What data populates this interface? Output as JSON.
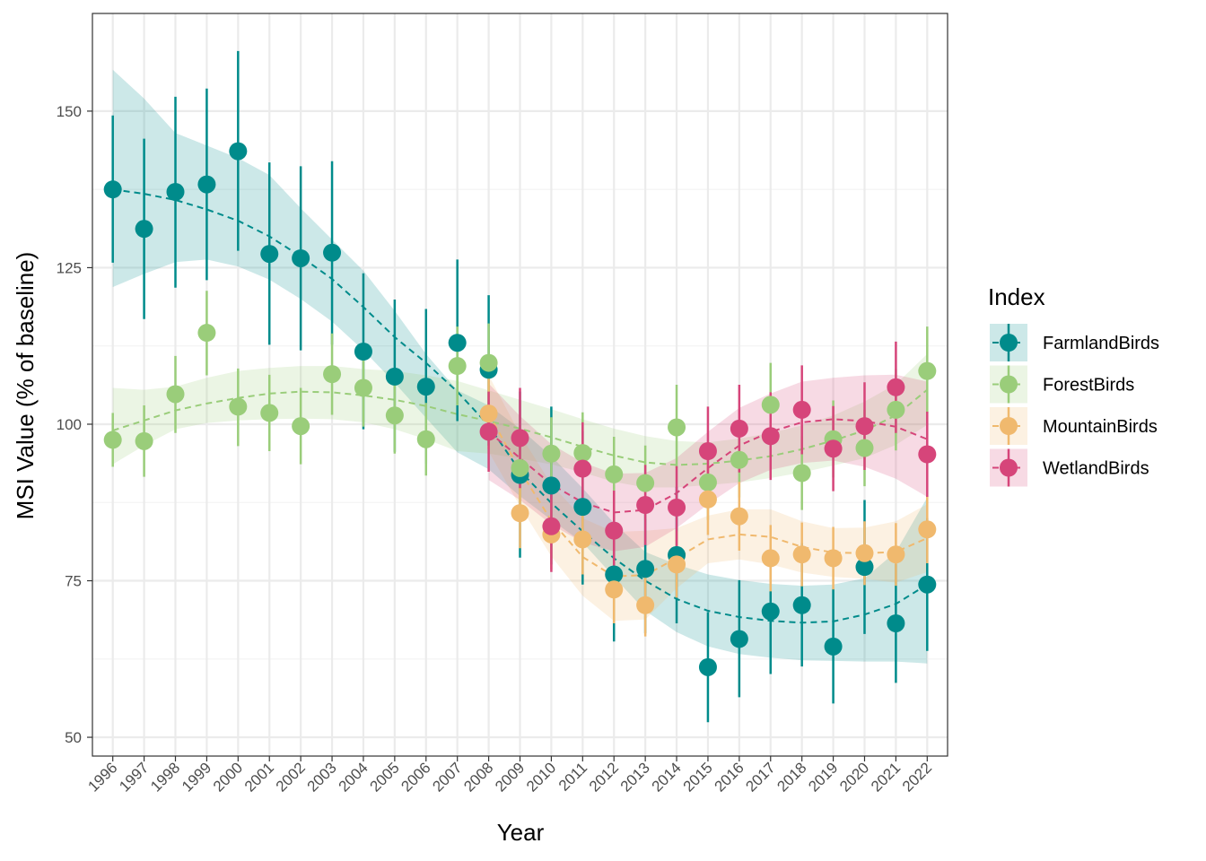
{
  "chart_data": {
    "type": "scatter",
    "xlabel": "Year",
    "ylabel": "MSI Value (% of baseline)",
    "xlim": [
      1995.35,
      2022.65
    ],
    "ylim": [
      47.0,
      165.6
    ],
    "yticks": [
      50,
      75,
      100,
      125,
      150
    ],
    "x": [
      1996,
      1997,
      1998,
      1999,
      2000,
      2001,
      2002,
      2003,
      2004,
      2005,
      2006,
      2007,
      2008,
      2009,
      2010,
      2011,
      2012,
      2013,
      2014,
      2015,
      2016,
      2017,
      2018,
      2019,
      2020,
      2021,
      2022
    ],
    "grid": true,
    "legend": {
      "title": "Index",
      "position": "right"
    },
    "series": [
      {
        "name": "FarmlandBirds",
        "color": "#008b8b",
        "x": [
          1996,
          1997,
          1998,
          1999,
          2000,
          2001,
          2002,
          2003,
          2004,
          2005,
          2006,
          2007,
          2008,
          2009,
          2010,
          2011,
          2012,
          2013,
          2014,
          2015,
          2016,
          2017,
          2018,
          2019,
          2020,
          2021,
          2022
        ],
        "y": [
          137.5,
          131.2,
          137.1,
          138.3,
          143.6,
          127.2,
          126.5,
          127.4,
          111.6,
          107.6,
          106.0,
          113.0,
          108.7,
          91.9,
          90.2,
          86.8,
          76.0,
          76.9,
          79.1,
          61.2,
          65.7,
          70.1,
          71.1,
          64.5,
          77.2,
          68.2,
          74.4
        ],
        "ymin": [
          125.8,
          116.8,
          121.8,
          123.0,
          127.7,
          112.7,
          111.8,
          112.7,
          99.2,
          95.6,
          93.7,
          100.5,
          96.6,
          78.7,
          77.6,
          74.4,
          65.3,
          66.6,
          68.2,
          52.4,
          56.4,
          60.1,
          61.3,
          55.4,
          66.5,
          58.7,
          63.8
        ],
        "ymax": [
          149.3,
          145.6,
          152.3,
          153.6,
          159.6,
          141.8,
          141.2,
          142.0,
          124.1,
          119.9,
          118.4,
          126.3,
          120.6,
          105.2,
          102.8,
          98.9,
          86.3,
          87.3,
          90.0,
          70.0,
          75.1,
          80.0,
          81.0,
          73.7,
          87.9,
          77.7,
          85.0
        ],
        "trend": [
          137.5,
          136.8,
          135.8,
          134.3,
          132.5,
          130.0,
          126.8,
          123.2,
          118.7,
          113.9,
          109.8,
          105.2,
          99.8,
          92.5,
          87.4,
          82.9,
          78.6,
          75.0,
          72.1,
          70.2,
          69.2,
          68.6,
          68.3,
          68.5,
          69.6,
          71.3,
          74.4
        ],
        "band_lo": [
          121.9,
          124.0,
          125.9,
          126.3,
          125.2,
          123.1,
          120.0,
          116.4,
          111.8,
          106.6,
          101.0,
          95.5,
          92.8,
          88.5,
          84.7,
          81.1,
          75.6,
          70.2,
          66.8,
          64.5,
          63.3,
          62.7,
          62.3,
          62.2,
          62.1,
          62.1,
          61.8
        ],
        "band_hi": [
          156.6,
          152.0,
          146.5,
          144.5,
          142.5,
          139.8,
          134.5,
          129.5,
          124.5,
          118.1,
          111.2,
          105.4,
          103.0,
          99.3,
          94.9,
          89.8,
          84.2,
          79.6,
          77.6,
          76.0,
          75.1,
          74.5,
          74.2,
          74.4,
          75.4,
          79.6,
          88.3
        ]
      },
      {
        "name": "ForestBirds",
        "color": "#9acd7a",
        "x": [
          1996,
          1997,
          1998,
          1999,
          2000,
          2001,
          2002,
          2003,
          2004,
          2005,
          2006,
          2007,
          2008,
          2009,
          2010,
          2011,
          2012,
          2013,
          2014,
          2015,
          2016,
          2017,
          2018,
          2019,
          2020,
          2021,
          2022
        ],
        "y": [
          97.5,
          97.3,
          104.8,
          114.6,
          102.8,
          101.8,
          99.7,
          108.0,
          105.8,
          101.4,
          97.6,
          109.3,
          109.8,
          93.0,
          95.3,
          95.4,
          92.0,
          90.6,
          99.5,
          90.7,
          94.3,
          103.1,
          92.2,
          97.6,
          96.2,
          102.3,
          108.5
        ],
        "ymin": [
          93.2,
          91.6,
          98.6,
          107.8,
          96.5,
          95.7,
          93.6,
          101.5,
          99.6,
          95.3,
          91.8,
          103.0,
          103.5,
          87.4,
          89.5,
          89.6,
          86.1,
          84.8,
          93.0,
          84.7,
          88.3,
          96.5,
          86.3,
          91.5,
          90.1,
          95.8,
          101.7
        ],
        "ymax": [
          101.8,
          103.0,
          110.9,
          121.3,
          108.9,
          107.9,
          105.8,
          114.5,
          112.0,
          107.5,
          103.4,
          115.6,
          116.1,
          98.6,
          101.1,
          101.9,
          98.0,
          96.6,
          106.3,
          96.9,
          100.3,
          109.8,
          98.1,
          103.8,
          102.3,
          108.8,
          115.6
        ],
        "trend": [
          99.0,
          100.6,
          102.2,
          103.3,
          104.2,
          104.9,
          105.2,
          105.1,
          104.6,
          103.9,
          102.9,
          101.6,
          100.5,
          99.3,
          97.9,
          96.4,
          95.0,
          93.9,
          93.5,
          93.7,
          94.2,
          94.9,
          96.0,
          97.4,
          99.0,
          101.4,
          105.5
        ],
        "band_lo": [
          93.6,
          96.6,
          99.2,
          100.2,
          100.6,
          100.8,
          100.9,
          100.8,
          100.3,
          99.2,
          97.6,
          95.7,
          95.3,
          94.5,
          93.6,
          92.3,
          90.8,
          89.9,
          89.9,
          90.3,
          90.7,
          91.4,
          92.3,
          93.4,
          94.6,
          96.7,
          99.9
        ],
        "band_hi": [
          105.8,
          105.5,
          106.0,
          107.4,
          108.5,
          109.0,
          109.3,
          109.3,
          108.8,
          108.5,
          107.8,
          106.9,
          105.4,
          103.9,
          102.4,
          100.8,
          99.3,
          98.1,
          97.3,
          97.1,
          97.7,
          98.6,
          99.8,
          101.4,
          103.6,
          106.4,
          111.2
        ]
      },
      {
        "name": "MountainBirds",
        "color": "#f0b96e",
        "x": [
          2008,
          2009,
          2010,
          2011,
          2012,
          2013,
          2014,
          2015,
          2016,
          2017,
          2018,
          2019,
          2020,
          2021,
          2022
        ],
        "y": [
          101.7,
          85.8,
          82.4,
          81.6,
          73.6,
          71.1,
          77.6,
          88.0,
          85.3,
          78.6,
          79.2,
          78.6,
          79.4,
          79.2,
          83.2
        ],
        "ymin": [
          96.0,
          80.2,
          76.8,
          76.0,
          68.2,
          66.1,
          72.3,
          82.3,
          79.8,
          73.3,
          74.1,
          73.6,
          74.3,
          74.2,
          77.8
        ],
        "ymax": [
          107.4,
          91.4,
          88.0,
          87.2,
          79.0,
          76.1,
          82.9,
          93.7,
          90.8,
          83.9,
          84.3,
          83.6,
          84.5,
          84.2,
          88.6
        ],
        "trend": [
          101.7,
          92.6,
          84.6,
          78.8,
          75.7,
          75.9,
          78.6,
          81.6,
          82.4,
          82.0,
          80.4,
          79.5,
          79.4,
          79.6,
          81.8
        ],
        "band_lo": [
          95.6,
          86.9,
          78.9,
          72.6,
          68.6,
          68.8,
          73.8,
          77.8,
          78.4,
          77.6,
          76.3,
          75.6,
          75.3,
          74.7,
          76.4
        ],
        "band_hi": [
          107.8,
          98.4,
          90.4,
          85.0,
          82.8,
          83.0,
          83.4,
          85.4,
          86.4,
          86.4,
          84.5,
          83.4,
          83.5,
          84.5,
          87.2
        ]
      },
      {
        "name": "WetlandBirds",
        "color": "#d6457a",
        "x": [
          2008,
          2009,
          2010,
          2011,
          2012,
          2013,
          2014,
          2015,
          2016,
          2017,
          2018,
          2019,
          2020,
          2021,
          2022
        ],
        "y": [
          98.8,
          97.8,
          83.7,
          92.9,
          83.0,
          87.1,
          86.7,
          95.7,
          99.3,
          98.1,
          102.3,
          96.1,
          99.7,
          105.9,
          95.2
        ],
        "ymin": [
          92.4,
          89.8,
          76.4,
          85.5,
          76.6,
          80.7,
          80.1,
          88.6,
          92.3,
          91.1,
          95.2,
          89.3,
          92.7,
          98.6,
          88.4
        ],
        "ymax": [
          105.2,
          105.8,
          91.0,
          100.3,
          89.4,
          93.5,
          93.3,
          102.8,
          106.3,
          105.1,
          109.4,
          102.9,
          106.7,
          113.2,
          102.0
        ],
        "trend": [
          98.8,
          94.6,
          90.4,
          87.5,
          85.9,
          86.3,
          89.0,
          93.0,
          96.6,
          98.8,
          100.3,
          100.8,
          100.5,
          99.6,
          97.6
        ],
        "band_lo": [
          91.1,
          87.9,
          84.0,
          81.1,
          79.7,
          80.4,
          83.4,
          87.2,
          90.6,
          92.7,
          93.8,
          94.2,
          93.2,
          91.3,
          88.4
        ],
        "band_hi": [
          106.5,
          101.3,
          96.8,
          93.9,
          92.1,
          92.2,
          94.6,
          98.8,
          102.6,
          104.9,
          106.8,
          107.4,
          107.8,
          107.9,
          106.8
        ]
      }
    ]
  }
}
